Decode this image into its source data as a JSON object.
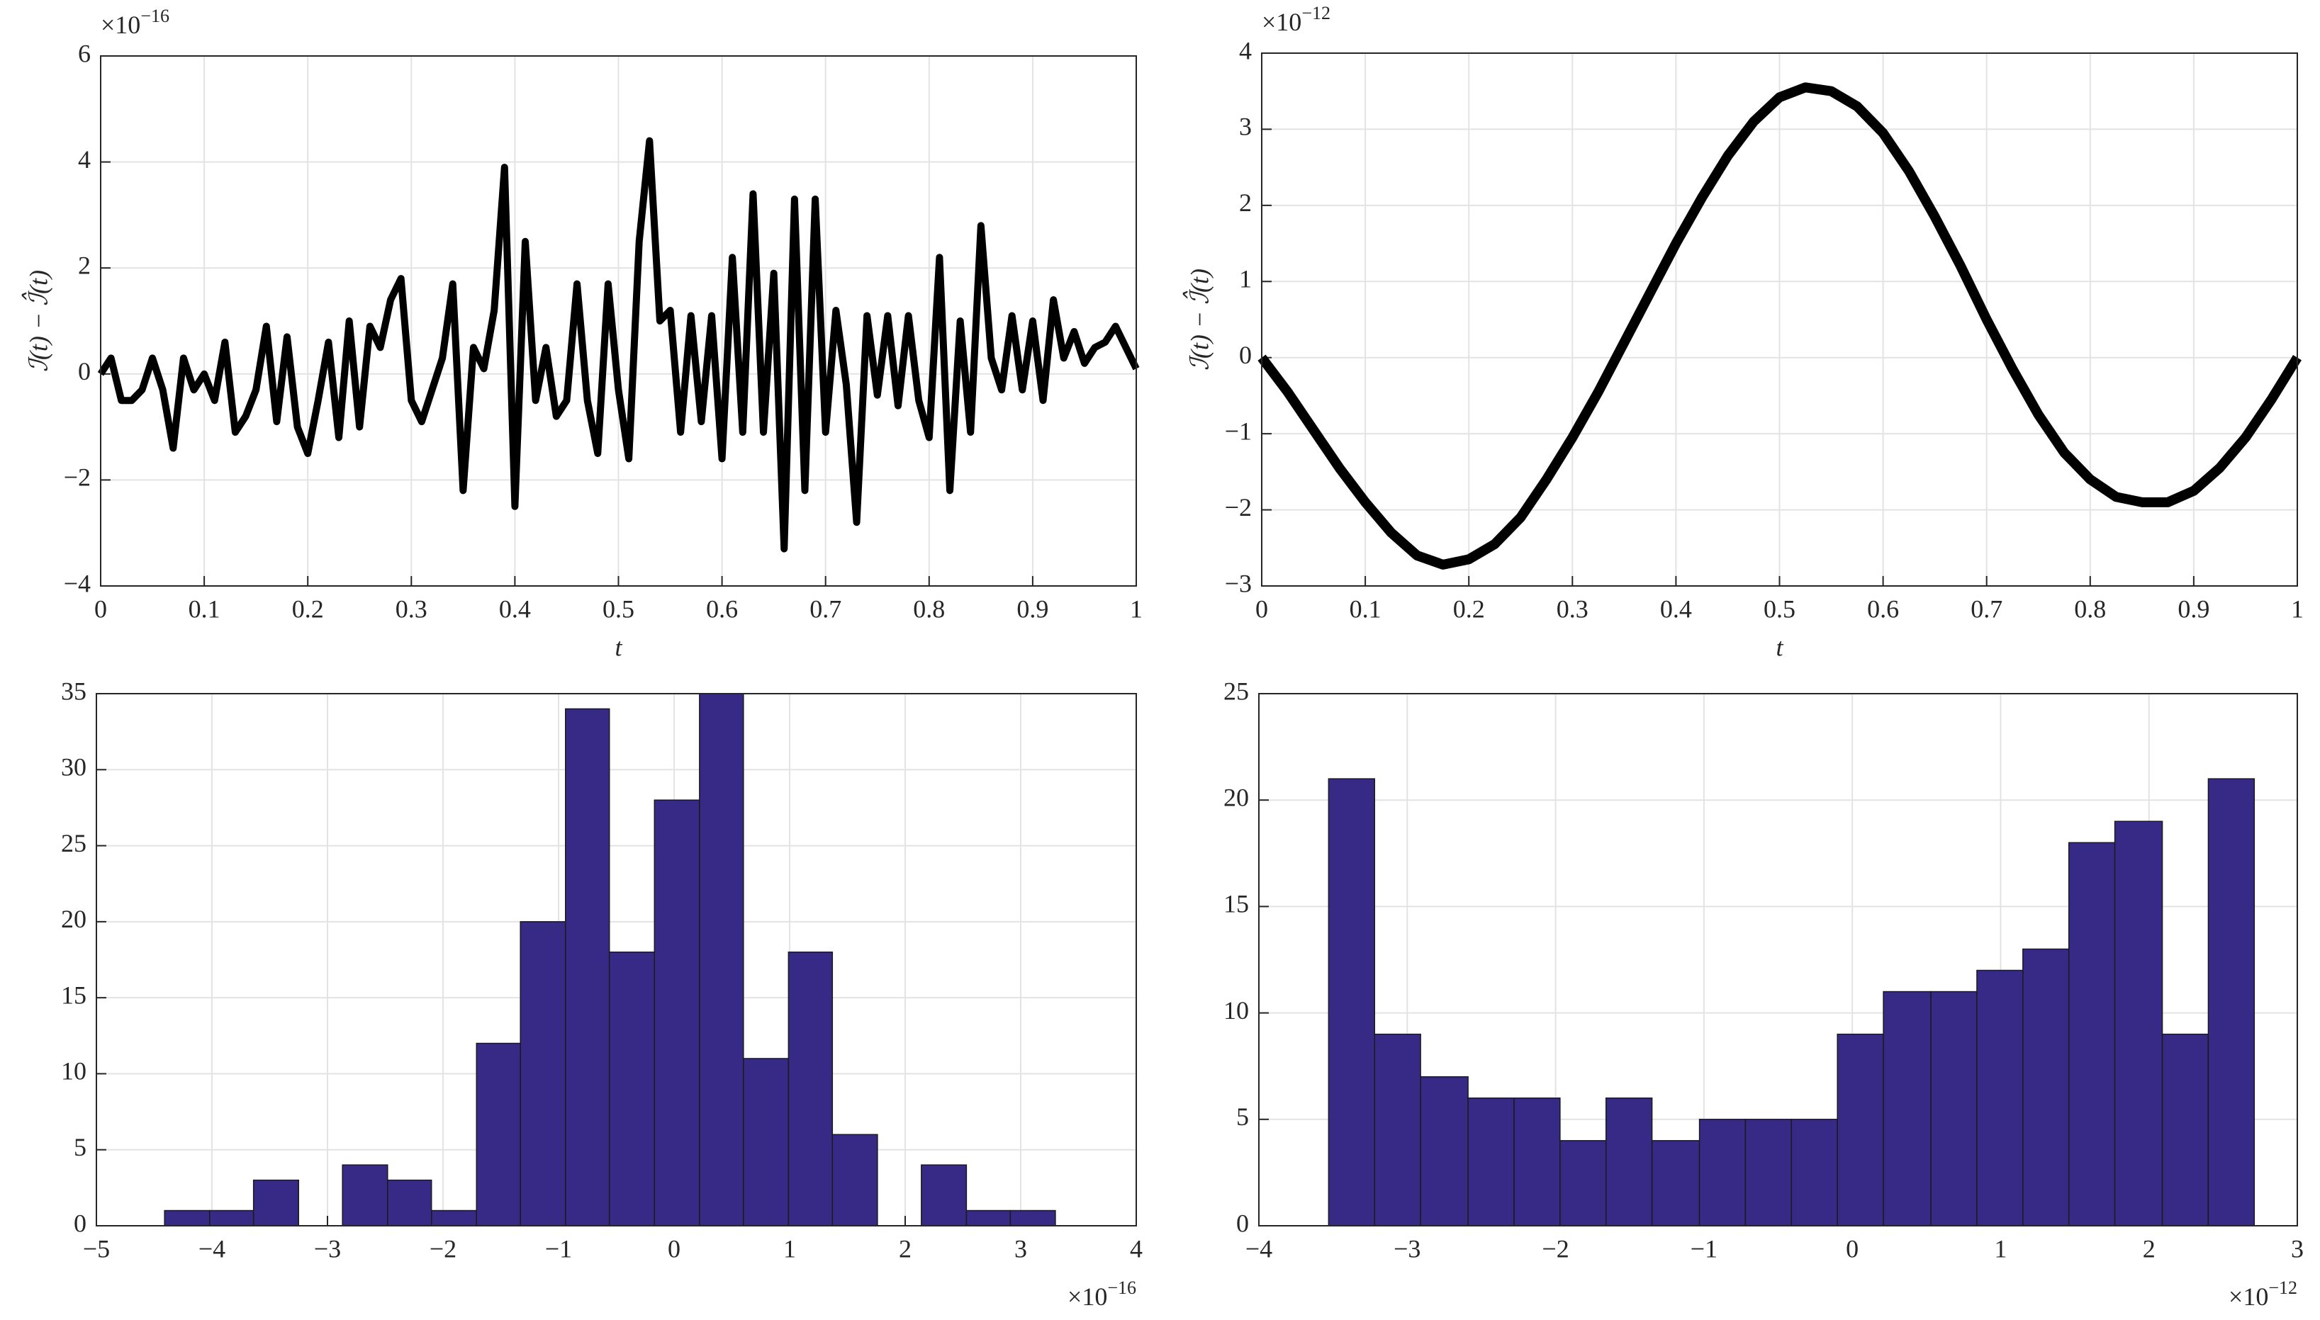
{
  "chart_data": [
    {
      "type": "line",
      "color": "#000000",
      "grid": true,
      "xlabel": "t",
      "ylabel": "ℐ(t) − ℐ̂(t)",
      "y_exponent": {
        "base": "×10",
        "power": "−16"
      },
      "xlim": [
        0,
        1
      ],
      "ylim": [
        -4,
        6
      ],
      "xticks": [
        0,
        0.1,
        0.2,
        0.3,
        0.4,
        0.5,
        0.6,
        0.7,
        0.8,
        0.9,
        1
      ],
      "yticks": [
        {
          "value": -4,
          "label": "−4"
        },
        {
          "value": -2,
          "label": "−2"
        },
        0,
        2,
        4,
        6
      ],
      "x": [
        0,
        0.01,
        0.02,
        0.03,
        0.04,
        0.05,
        0.06,
        0.07,
        0.08,
        0.09,
        0.1,
        0.11,
        0.12,
        0.13,
        0.14,
        0.15,
        0.16,
        0.17,
        0.18,
        0.19,
        0.2,
        0.21,
        0.22,
        0.23,
        0.24,
        0.25,
        0.26,
        0.27,
        0.28,
        0.29,
        0.3,
        0.31,
        0.32,
        0.33,
        0.34,
        0.35,
        0.36,
        0.37,
        0.38,
        0.39,
        0.4,
        0.41,
        0.42,
        0.43,
        0.44,
        0.45,
        0.46,
        0.47,
        0.48,
        0.49,
        0.5,
        0.51,
        0.52,
        0.53,
        0.54,
        0.55,
        0.56,
        0.57,
        0.58,
        0.59,
        0.6,
        0.61,
        0.62,
        0.63,
        0.64,
        0.65,
        0.66,
        0.67,
        0.68,
        0.69,
        0.7,
        0.71,
        0.72,
        0.73,
        0.74,
        0.75,
        0.76,
        0.77,
        0.78,
        0.79,
        0.8,
        0.81,
        0.82,
        0.83,
        0.84,
        0.85,
        0.86,
        0.87,
        0.88,
        0.89,
        0.9,
        0.91,
        0.92,
        0.93,
        0.94,
        0.95,
        0.96,
        0.97,
        0.98,
        0.99,
        1
      ],
      "values": [
        0,
        0.3,
        -0.5,
        -0.5,
        -0.3,
        0.3,
        -0.3,
        -1.4,
        0.3,
        -0.3,
        0,
        -0.5,
        0.6,
        -1.1,
        -0.8,
        -0.3,
        0.9,
        -0.9,
        0.7,
        -1.0,
        -1.5,
        -0.5,
        0.6,
        -1.2,
        1.0,
        -1.0,
        0.9,
        0.5,
        1.4,
        1.8,
        -0.5,
        -0.9,
        -0.3,
        0.3,
        1.7,
        -2.2,
        0.5,
        0.1,
        1.2,
        3.9,
        -2.5,
        2.5,
        -0.5,
        0.5,
        -0.8,
        -0.5,
        1.7,
        -0.5,
        -1.5,
        1.7,
        -0.3,
        -1.6,
        2.5,
        4.4,
        1.0,
        1.2,
        -1.1,
        1.1,
        -0.9,
        1.1,
        -1.6,
        2.2,
        -1.1,
        3.4,
        -1.1,
        1.9,
        -3.3,
        3.3,
        -2.2,
        3.3,
        -1.1,
        1.2,
        -0.2,
        -2.8,
        1.1,
        -0.4,
        1.1,
        -0.6,
        1.1,
        -0.5,
        -1.2,
        2.2,
        -2.2,
        1.0,
        -1.1,
        2.8,
        0.3,
        -0.3,
        1.1,
        -0.3,
        1.0,
        -0.5,
        1.4,
        0.3,
        0.8,
        0.2,
        0.5,
        0.6,
        0.9,
        0.5,
        0.1
      ]
    },
    {
      "type": "line",
      "color": "#000000",
      "grid": true,
      "xlabel": "t",
      "ylabel": "ℐ(t) − ℐ̂(t)",
      "y_exponent": {
        "base": "×10",
        "power": "−12"
      },
      "xlim": [
        0,
        1
      ],
      "ylim": [
        -3,
        4
      ],
      "xticks": [
        0,
        0.1,
        0.2,
        0.3,
        0.4,
        0.5,
        0.6,
        0.7,
        0.8,
        0.9,
        1
      ],
      "yticks": [
        {
          "value": -3,
          "label": "−3"
        },
        {
          "value": -2,
          "label": "−2"
        },
        {
          "value": -1,
          "label": "−1"
        },
        0,
        1,
        2,
        3,
        4
      ],
      "x": [
        0,
        0.025,
        0.05,
        0.075,
        0.1,
        0.125,
        0.15,
        0.175,
        0.2,
        0.225,
        0.25,
        0.275,
        0.3,
        0.325,
        0.35,
        0.375,
        0.4,
        0.425,
        0.45,
        0.475,
        0.5,
        0.525,
        0.55,
        0.575,
        0.6,
        0.625,
        0.65,
        0.675,
        0.7,
        0.725,
        0.75,
        0.775,
        0.8,
        0.825,
        0.85,
        0.875,
        0.9,
        0.925,
        0.95,
        0.975,
        1
      ],
      "values": [
        0,
        -0.45,
        -0.95,
        -1.45,
        -1.9,
        -2.3,
        -2.6,
        -2.72,
        -2.65,
        -2.45,
        -2.1,
        -1.6,
        -1.05,
        -0.45,
        0.2,
        0.85,
        1.5,
        2.1,
        2.65,
        3.1,
        3.42,
        3.55,
        3.5,
        3.3,
        2.95,
        2.45,
        1.85,
        1.2,
        0.5,
        -0.15,
        -0.75,
        -1.25,
        -1.6,
        -1.83,
        -1.9,
        -1.9,
        -1.75,
        -1.45,
        -1.05,
        -0.55,
        0
      ]
    },
    {
      "type": "histogram",
      "color": "#372a87",
      "grid": true,
      "x_exponent": {
        "base": "×10",
        "power": "−16"
      },
      "xlim": [
        -5,
        4
      ],
      "ylim": [
        0,
        35
      ],
      "xticks": [
        {
          "value": -5,
          "label": "−5"
        },
        {
          "value": -4,
          "label": "−4"
        },
        {
          "value": -3,
          "label": "−3"
        },
        {
          "value": -2,
          "label": "−2"
        },
        {
          "value": -1,
          "label": "−1"
        },
        0,
        1,
        2,
        3,
        4
      ],
      "yticks": [
        0,
        5,
        10,
        15,
        20,
        25,
        30,
        35
      ],
      "bins": [
        -4.41,
        -4.02,
        -3.64,
        -3.25,
        -2.87,
        -2.48,
        -2.1,
        -1.71,
        -1.33,
        -0.94,
        -0.56,
        -0.17,
        0.22,
        0.6,
        0.99,
        1.37,
        1.76,
        2.14,
        2.53,
        2.91,
        3.3
      ],
      "values": [
        1,
        1,
        3,
        0,
        4,
        3,
        1,
        12,
        20,
        34,
        18,
        28,
        35,
        11,
        18,
        6,
        0,
        4,
        1,
        1
      ]
    },
    {
      "type": "histogram",
      "color": "#372a87",
      "grid": true,
      "x_exponent": {
        "base": "×10",
        "power": "−12"
      },
      "xlim": [
        -4,
        3
      ],
      "ylim": [
        0,
        25
      ],
      "xticks": [
        {
          "value": -4,
          "label": "−4"
        },
        {
          "value": -3,
          "label": "−3"
        },
        {
          "value": -2,
          "label": "−2"
        },
        {
          "value": -1,
          "label": "−1"
        },
        0,
        1,
        2,
        3
      ],
      "yticks": [
        0,
        5,
        10,
        15,
        20,
        25
      ],
      "bins": [
        -3.53,
        -3.22,
        -2.91,
        -2.59,
        -2.28,
        -1.97,
        -1.66,
        -1.35,
        -1.03,
        -0.72,
        -0.41,
        -0.1,
        0.21,
        0.53,
        0.84,
        1.15,
        1.46,
        1.77,
        2.09,
        2.4,
        2.71
      ],
      "values": [
        21,
        9,
        7,
        6,
        6,
        4,
        6,
        4,
        5,
        5,
        5,
        9,
        11,
        11,
        12,
        13,
        18,
        19,
        9,
        21
      ]
    }
  ]
}
